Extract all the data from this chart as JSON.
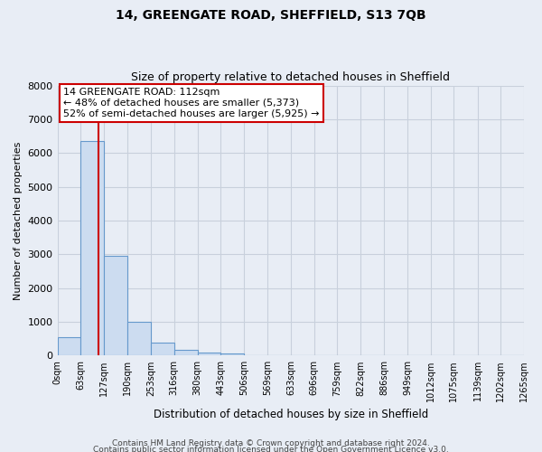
{
  "title": "14, GREENGATE ROAD, SHEFFIELD, S13 7QB",
  "subtitle": "Size of property relative to detached houses in Sheffield",
  "xlabel": "Distribution of detached houses by size in Sheffield",
  "ylabel": "Number of detached properties",
  "bin_edges": [
    0,
    63,
    127,
    190,
    253,
    316,
    380,
    443,
    506,
    569,
    633,
    696,
    759,
    822,
    886,
    949,
    1012,
    1075,
    1139,
    1202,
    1265
  ],
  "bin_counts": [
    550,
    6350,
    2950,
    990,
    380,
    175,
    100,
    55,
    0,
    0,
    0,
    0,
    0,
    0,
    0,
    0,
    0,
    0,
    0,
    0
  ],
  "bar_color": "#ccdcf0",
  "bar_edge_color": "#6699cc",
  "vline_color": "#cc0000",
  "vline_x": 112,
  "ylim": [
    0,
    8000
  ],
  "yticks": [
    0,
    1000,
    2000,
    3000,
    4000,
    5000,
    6000,
    7000,
    8000
  ],
  "annotation_title": "14 GREENGATE ROAD: 112sqm",
  "annotation_line1": "← 48% of detached houses are smaller (5,373)",
  "annotation_line2": "52% of semi-detached houses are larger (5,925) →",
  "annotation_box_color": "#ffffff",
  "annotation_edge_color": "#cc0000",
  "footer1": "Contains HM Land Registry data © Crown copyright and database right 2024.",
  "footer2": "Contains public sector information licensed under the Open Government Licence v3.0.",
  "bg_color": "#e8edf5",
  "plot_bg_color": "#e8edf5",
  "grid_color": "#c8d0dc"
}
